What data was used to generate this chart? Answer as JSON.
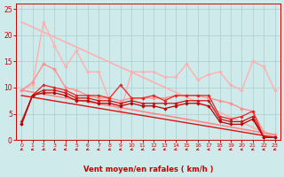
{
  "background_color": "#ceeaea",
  "grid_color": "#aacece",
  "xlabel": "Vent moyen/en rafales ( km/h )",
  "xlabel_color": "#cc0000",
  "tick_color": "#cc0000",
  "axis_color": "#cc0000",
  "xlim": [
    -0.5,
    23.5
  ],
  "ylim": [
    0,
    26
  ],
  "yticks": [
    0,
    5,
    10,
    15,
    20,
    25
  ],
  "xticks": [
    0,
    1,
    2,
    3,
    4,
    5,
    6,
    7,
    8,
    9,
    10,
    11,
    12,
    13,
    14,
    15,
    16,
    17,
    18,
    19,
    20,
    21,
    22,
    23
  ],
  "lines": [
    {
      "x": [
        0,
        1,
        2,
        3,
        4,
        5,
        6,
        7,
        8,
        9,
        10,
        11,
        12,
        13,
        14,
        15,
        16,
        17,
        18,
        19,
        20,
        21,
        22,
        23
      ],
      "y": [
        9.5,
        10.5,
        22.5,
        18.0,
        14.0,
        17.0,
        13.0,
        13.0,
        7.5,
        5.5,
        13.0,
        13.0,
        13.0,
        12.0,
        12.0,
        14.5,
        11.5,
        12.5,
        13.0,
        10.5,
        9.5,
        15.0,
        14.0,
        9.5
      ],
      "color": "#ffb0b0",
      "lw": 1.0,
      "marker": "D",
      "ms": 2.0
    },
    {
      "x": [
        0,
        1,
        2,
        3,
        4,
        5,
        6,
        7,
        8,
        9,
        10,
        11,
        12,
        13,
        14,
        15,
        16,
        17,
        18,
        19,
        20,
        21,
        22,
        23
      ],
      "y": [
        9.5,
        11.0,
        14.5,
        13.5,
        10.0,
        9.5,
        8.5,
        8.0,
        8.0,
        7.5,
        8.0,
        8.0,
        8.0,
        8.0,
        8.5,
        8.5,
        8.5,
        8.0,
        7.5,
        7.0,
        6.0,
        5.5,
        1.5,
        1.0
      ],
      "color": "#ff9090",
      "lw": 1.0,
      "marker": "D",
      "ms": 2.0
    },
    {
      "x": [
        0,
        23
      ],
      "y": [
        22.5,
        0.5
      ],
      "color": "#ffb0b0",
      "lw": 1.2,
      "marker": null,
      "ms": 0
    },
    {
      "x": [
        0,
        23
      ],
      "y": [
        9.5,
        1.0
      ],
      "color": "#ff8888",
      "lw": 1.2,
      "marker": null,
      "ms": 0
    },
    {
      "x": [
        0,
        1,
        2,
        3,
        4,
        5,
        6,
        7,
        8,
        9,
        10,
        11,
        12,
        13,
        14,
        15,
        16,
        17,
        18,
        19,
        20,
        21,
        22,
        23
      ],
      "y": [
        3.5,
        8.5,
        10.5,
        10.0,
        9.5,
        8.5,
        8.5,
        8.5,
        8.0,
        10.5,
        8.0,
        8.0,
        8.5,
        7.5,
        8.5,
        8.5,
        8.5,
        8.5,
        4.5,
        4.0,
        4.5,
        5.5,
        0.5,
        0.5
      ],
      "color": "#ee2222",
      "lw": 0.9,
      "marker": "D",
      "ms": 1.8
    },
    {
      "x": [
        0,
        1,
        2,
        3,
        4,
        5,
        6,
        7,
        8,
        9,
        10,
        11,
        12,
        13,
        14,
        15,
        16,
        17,
        18,
        19,
        20,
        21,
        22,
        23
      ],
      "y": [
        3.0,
        8.5,
        9.5,
        9.5,
        9.0,
        8.0,
        8.0,
        7.5,
        7.5,
        7.0,
        7.5,
        7.0,
        7.0,
        7.0,
        7.0,
        7.5,
        7.5,
        7.5,
        4.0,
        3.5,
        3.5,
        4.5,
        0.5,
        0.5
      ],
      "color": "#cc1111",
      "lw": 0.9,
      "marker": "D",
      "ms": 1.8
    },
    {
      "x": [
        0,
        1,
        2,
        3,
        4,
        5,
        6,
        7,
        8,
        9,
        10,
        11,
        12,
        13,
        14,
        15,
        16,
        17,
        18,
        19,
        20,
        21,
        22,
        23
      ],
      "y": [
        3.0,
        8.5,
        9.0,
        9.0,
        8.5,
        7.5,
        7.5,
        7.0,
        7.0,
        6.5,
        7.0,
        6.5,
        6.5,
        6.0,
        6.5,
        7.0,
        7.0,
        6.5,
        3.5,
        3.0,
        3.0,
        4.0,
        0.5,
        0.5
      ],
      "color": "#bb0000",
      "lw": 0.9,
      "marker": "D",
      "ms": 1.8
    },
    {
      "x": [
        0,
        23
      ],
      "y": [
        8.5,
        0.5
      ],
      "color": "#dd1111",
      "lw": 1.0,
      "marker": null,
      "ms": 0
    }
  ],
  "arrow_color": "#cc0000",
  "arrow_angles": [
    225,
    210,
    225,
    215,
    200,
    210,
    220,
    205,
    215,
    200,
    220,
    210,
    215,
    205,
    210,
    195,
    215,
    205,
    200,
    210,
    195,
    205,
    200,
    210
  ]
}
